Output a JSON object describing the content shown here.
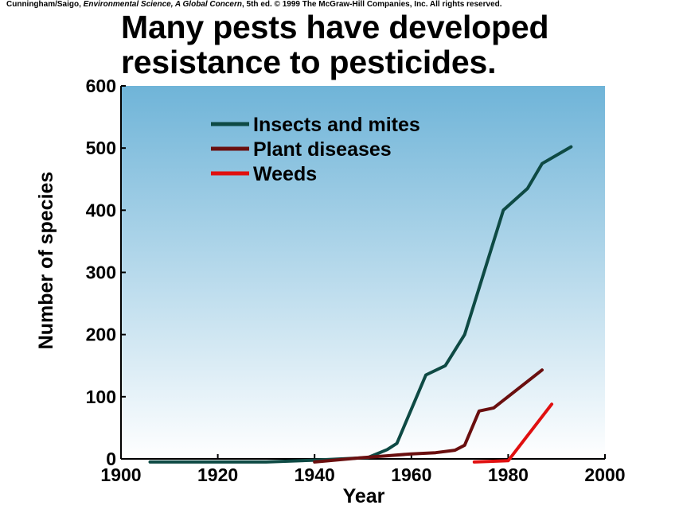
{
  "credit": {
    "prefix": "Cunningham/Saigo, ",
    "book": "Environmental Science, A Global Concern",
    "suffix": ", 5th ed. © 1999 The McGraw-Hill Companies, Inc. All rights reserved."
  },
  "colors": {
    "insects": "#0e4a44",
    "plant": "#6a0f0f",
    "weeds": "#e01010",
    "plot_top": "#6fb4d8",
    "plot_bottom": "#ffffff"
  },
  "chart_data": {
    "type": "line",
    "title": "Many pests have developed resistance to pesticides.",
    "title_lines": [
      "Many pests have developed",
      "resistance to pesticides."
    ],
    "xlabel": "Year",
    "ylabel": "Number of species",
    "xlim": [
      1900,
      2000
    ],
    "ylim": [
      0,
      600
    ],
    "xticks": [
      1900,
      1920,
      1940,
      1960,
      1980,
      2000
    ],
    "yticks": [
      0,
      100,
      200,
      300,
      400,
      500,
      600
    ],
    "legend_position": "upper-left",
    "grid": false,
    "series": [
      {
        "name": "Insects and mites",
        "color": "#0e4a44",
        "x": [
          1906,
          1920,
          1930,
          1940,
          1951,
          1955,
          1957,
          1963,
          1967,
          1971,
          1975,
          1979,
          1984,
          1987,
          1993
        ],
        "y": [
          -5,
          -5,
          -5,
          -2,
          2,
          15,
          25,
          135,
          150,
          200,
          300,
          400,
          435,
          475,
          502
        ]
      },
      {
        "name": "Plant diseases",
        "color": "#6a0f0f",
        "x": [
          1940,
          1950,
          1955,
          1960,
          1965,
          1969,
          1971,
          1974,
          1977,
          1987
        ],
        "y": [
          -5,
          2,
          5,
          8,
          10,
          14,
          22,
          77,
          82,
          143
        ]
      },
      {
        "name": "Weeds",
        "color": "#e01010",
        "x": [
          1973,
          1980,
          1989
        ],
        "y": [
          -5,
          -3,
          88
        ]
      }
    ]
  }
}
